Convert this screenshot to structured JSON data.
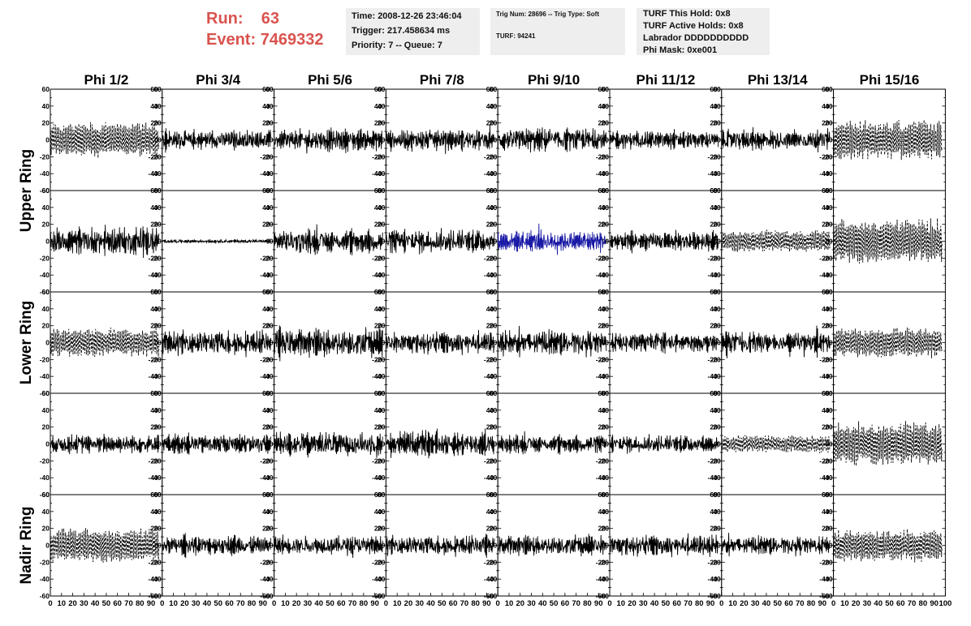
{
  "header": {
    "run_label": "Run:",
    "run_value": "63",
    "event_label": "Event:",
    "event_value": "7469332",
    "time": "Time: 2008-12-26 23:46:04",
    "trigger": "Trigger: 217.458634 ms",
    "priority": "Priority: 7 -- Queue: 7",
    "trig_num": "Trig Num: 28696 -- Trig Type: Soft",
    "turf": "TURF: 94241",
    "turf_hold": "TURF This Hold: 0x8",
    "turf_active": "TURF Active Holds: 0x8",
    "labrador": "Labrador DDDDDDDDDD",
    "phi_mask": "Phi Mask: 0xe001"
  },
  "columns": [
    "Phi 1/2",
    "Phi 3/4",
    "Phi 5/6",
    "Phi 7/8",
    "Phi 9/10",
    "Phi 11/12",
    "Phi 13/14",
    "Phi 15/16"
  ],
  "rows": [
    "Upper Ring",
    "Lower Ring",
    "Nadir Ring"
  ],
  "chart_data": {
    "type": "line",
    "grid_layout": "5 rows x 8 columns of waveform panels",
    "y_range": [
      -60,
      60
    ],
    "y_ticks": [
      "60",
      "40",
      "20",
      "0",
      "-20",
      "-40",
      "-60"
    ],
    "x_range": [
      0,
      100
    ],
    "x_ticks": [
      "0",
      "10",
      "20",
      "30",
      "40",
      "50",
      "60",
      "70",
      "80",
      "90",
      "100"
    ],
    "panels": [
      {
        "row": 0,
        "col": 0,
        "style": "dashed",
        "amplitude": 28
      },
      {
        "row": 0,
        "col": 1,
        "style": "solid",
        "amplitude": 16
      },
      {
        "row": 0,
        "col": 2,
        "style": "solid",
        "amplitude": 18
      },
      {
        "row": 0,
        "col": 3,
        "style": "solid",
        "amplitude": 17
      },
      {
        "row": 0,
        "col": 4,
        "style": "solid",
        "amplitude": 20
      },
      {
        "row": 0,
        "col": 5,
        "style": "solid",
        "amplitude": 15
      },
      {
        "row": 0,
        "col": 6,
        "style": "solid",
        "amplitude": 17
      },
      {
        "row": 0,
        "col": 7,
        "style": "dashed",
        "amplitude": 32
      },
      {
        "row": 1,
        "col": 0,
        "style": "solid",
        "amplitude": 24
      },
      {
        "row": 1,
        "col": 1,
        "style": "solid",
        "amplitude": 3
      },
      {
        "row": 1,
        "col": 2,
        "style": "solid",
        "amplitude": 20
      },
      {
        "row": 1,
        "col": 3,
        "style": "solid",
        "amplitude": 20
      },
      {
        "row": 1,
        "col": 4,
        "style": "solid",
        "amplitude": 18,
        "color": "#1a1aa6"
      },
      {
        "row": 1,
        "col": 5,
        "style": "solid",
        "amplitude": 16
      },
      {
        "row": 1,
        "col": 6,
        "style": "dashed",
        "amplitude": 18
      },
      {
        "row": 1,
        "col": 7,
        "style": "dashed",
        "amplitude": 36
      },
      {
        "row": 2,
        "col": 0,
        "style": "dashed",
        "amplitude": 24
      },
      {
        "row": 2,
        "col": 1,
        "style": "solid",
        "amplitude": 20
      },
      {
        "row": 2,
        "col": 2,
        "style": "solid",
        "amplitude": 24
      },
      {
        "row": 2,
        "col": 3,
        "style": "solid",
        "amplitude": 18
      },
      {
        "row": 2,
        "col": 4,
        "style": "solid",
        "amplitude": 20
      },
      {
        "row": 2,
        "col": 5,
        "style": "solid",
        "amplitude": 16
      },
      {
        "row": 2,
        "col": 6,
        "style": "solid",
        "amplitude": 18
      },
      {
        "row": 2,
        "col": 7,
        "style": "dashed",
        "amplitude": 24
      },
      {
        "row": 3,
        "col": 0,
        "style": "solid",
        "amplitude": 16
      },
      {
        "row": 3,
        "col": 1,
        "style": "solid",
        "amplitude": 16
      },
      {
        "row": 3,
        "col": 2,
        "style": "solid",
        "amplitude": 20
      },
      {
        "row": 3,
        "col": 3,
        "style": "solid",
        "amplitude": 20
      },
      {
        "row": 3,
        "col": 4,
        "style": "solid",
        "amplitude": 15
      },
      {
        "row": 3,
        "col": 5,
        "style": "solid",
        "amplitude": 15
      },
      {
        "row": 3,
        "col": 6,
        "style": "dashed",
        "amplitude": 14
      },
      {
        "row": 3,
        "col": 7,
        "style": "dashed",
        "amplitude": 36
      },
      {
        "row": 4,
        "col": 0,
        "style": "dashed",
        "amplitude": 28
      },
      {
        "row": 4,
        "col": 1,
        "style": "solid",
        "amplitude": 16
      },
      {
        "row": 4,
        "col": 2,
        "style": "solid",
        "amplitude": 16
      },
      {
        "row": 4,
        "col": 3,
        "style": "solid",
        "amplitude": 16
      },
      {
        "row": 4,
        "col": 4,
        "style": "solid",
        "amplitude": 17
      },
      {
        "row": 4,
        "col": 5,
        "style": "solid",
        "amplitude": 17
      },
      {
        "row": 4,
        "col": 6,
        "style": "solid",
        "amplitude": 15
      },
      {
        "row": 4,
        "col": 7,
        "style": "dashed",
        "amplitude": 26
      }
    ]
  }
}
